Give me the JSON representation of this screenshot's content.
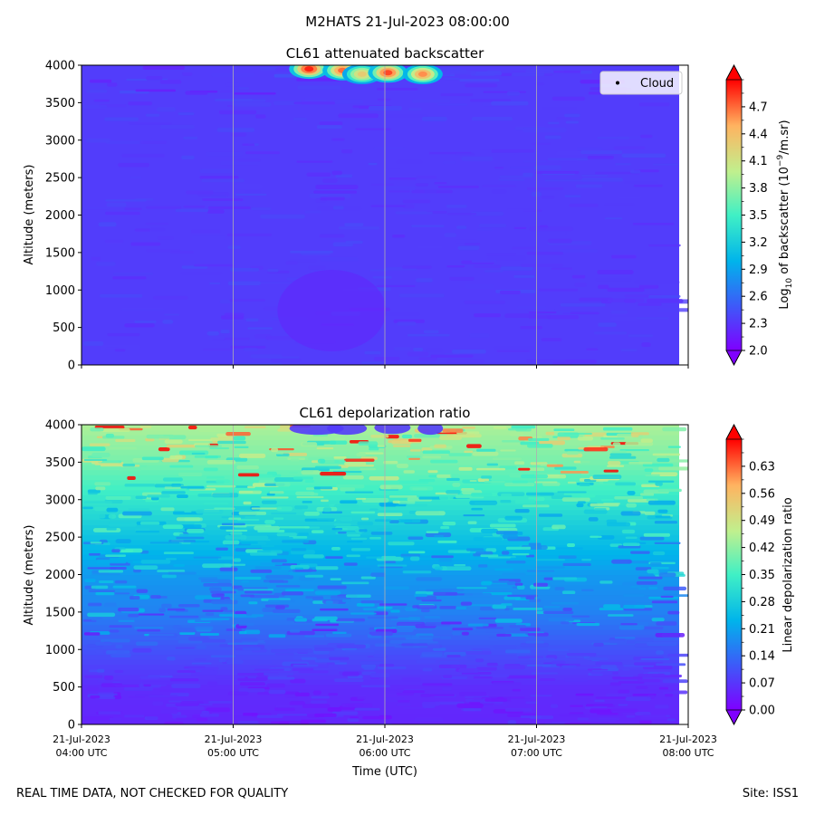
{
  "suptitle": "M2HATS 21-Jul-2023 08:00:00",
  "footer": {
    "left": "REAL TIME DATA, NOT CHECKED FOR QUALITY",
    "right": "Site: ISS1"
  },
  "colors": {
    "cmap": [
      "#7f00ff",
      "#3f57f9",
      "#00b4eb",
      "#40f0c5",
      "#c0f08e",
      "#ffb360",
      "#ff0000"
    ],
    "background_blue": "#4b5ef2",
    "grid": "#b0b0b0"
  },
  "chart_data": [
    {
      "type": "heatmap",
      "title": "CL61 attenuated backscatter",
      "ylabel": "Altitude (meters)",
      "xlabel": "",
      "ylim": [
        0,
        4000
      ],
      "yticks": [
        "0",
        "500",
        "1000",
        "1500",
        "2000",
        "2500",
        "3000",
        "3500",
        "4000"
      ],
      "xlim_hours": [
        4,
        8
      ],
      "xticks_hours": [
        4,
        5,
        6,
        7,
        8
      ],
      "xticklabels": [],
      "legend": {
        "entries": [
          "Cloud"
        ],
        "placement": "upper right"
      },
      "colorbar": {
        "label_prefix": "Log",
        "label_sub": "10",
        "label_mid": " of backscatter (10",
        "label_sup": "−9",
        "label_suffix": "/m.sr)",
        "range": [
          2.0,
          5.0
        ],
        "ticks": [
          "2.0",
          "2.3",
          "2.6",
          "2.9",
          "3.2",
          "3.5",
          "3.8",
          "4.1",
          "4.4",
          "4.7"
        ],
        "extend": "both"
      },
      "features": {
        "background_level": 2.35,
        "cloud_patches": [
          {
            "time_hour": 5.5,
            "altitude_m": 3950,
            "value": 4.9
          },
          {
            "time_hour": 5.72,
            "altitude_m": 3930,
            "value": 4.7
          },
          {
            "time_hour": 5.85,
            "altitude_m": 3880,
            "value": 4.3
          },
          {
            "time_hour": 6.02,
            "altitude_m": 3900,
            "value": 4.8
          },
          {
            "time_hour": 6.25,
            "altitude_m": 3880,
            "value": 4.6
          }
        ]
      }
    },
    {
      "type": "heatmap",
      "title": "CL61 depolarization ratio",
      "ylabel": "Altitude (meters)",
      "xlabel": "Time (UTC)",
      "ylim": [
        0,
        4000
      ],
      "yticks": [
        "0",
        "500",
        "1000",
        "1500",
        "2000",
        "2500",
        "3000",
        "3500",
        "4000"
      ],
      "xlim_hours": [
        4,
        8
      ],
      "xticks_hours": [
        4,
        5,
        6,
        7,
        8
      ],
      "xticklabels": [
        [
          "21-Jul-2023",
          "04:00 UTC"
        ],
        [
          "21-Jul-2023",
          "05:00 UTC"
        ],
        [
          "21-Jul-2023",
          "06:00 UTC"
        ],
        [
          "21-Jul-2023",
          "07:00 UTC"
        ],
        [
          "21-Jul-2023",
          "08:00 UTC"
        ]
      ],
      "colorbar": {
        "label": "Linear depolarization ratio",
        "range": [
          0.0,
          0.7
        ],
        "ticks": [
          "0.00",
          "0.07",
          "0.14",
          "0.21",
          "0.28",
          "0.35",
          "0.42",
          "0.49",
          "0.56",
          "0.63"
        ],
        "extend": "both"
      },
      "features": {
        "profile_altitude_m": [
          0,
          500,
          1000,
          1500,
          2000,
          2500,
          3000,
          3500,
          4000
        ],
        "profile_value": [
          0.05,
          0.06,
          0.11,
          0.17,
          0.2,
          0.26,
          0.33,
          0.4,
          0.45
        ]
      }
    }
  ]
}
